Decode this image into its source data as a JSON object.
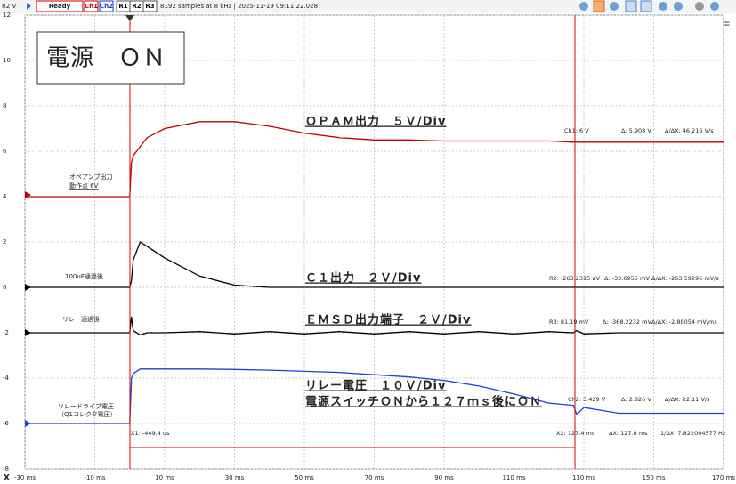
{
  "toolbar": {
    "axis_unit": "R2 V",
    "status": "Ready",
    "channels": [
      "Ch1",
      "Ch2",
      "R1",
      "R2",
      "R3"
    ],
    "info": "8192 samples at 8 kHz | 2025-11-19 09:11:22.028",
    "corner": "X"
  },
  "chart_data": {
    "type": "line",
    "x": [
      -30,
      0,
      0.5,
      1,
      3,
      5,
      10,
      20,
      30,
      40,
      50,
      60,
      70,
      80,
      90,
      100,
      110,
      120,
      127,
      128,
      130,
      140,
      150,
      160,
      170
    ],
    "series": [
      {
        "name": "Ch1",
        "color": "#c00000",
        "values": [
          4,
          4,
          5.5,
          5.8,
          6.2,
          6.6,
          7.0,
          7.3,
          7.3,
          7.1,
          6.8,
          6.6,
          6.5,
          6.5,
          6.45,
          6.45,
          6.45,
          6.45,
          6.4,
          6.4,
          6.4,
          6.4,
          6.4,
          6.4,
          6.4
        ]
      },
      {
        "name": "R2",
        "color": "#000000",
        "values": [
          0,
          0,
          0.3,
          1.2,
          2.0,
          1.8,
          1.3,
          0.5,
          0.1,
          0,
          0,
          0,
          0,
          0,
          0,
          0,
          0,
          0,
          0,
          0,
          0,
          0,
          0,
          0,
          0
        ]
      },
      {
        "name": "R3",
        "color": "#000000",
        "values": [
          -2,
          -2,
          -1.3,
          -1.9,
          -2.1,
          -2.0,
          -2.0,
          -1.95,
          -2.05,
          -1.95,
          -2.05,
          -1.95,
          -2.05,
          -1.95,
          -2.05,
          -1.95,
          -2.05,
          -1.95,
          -2.0,
          -1.9,
          -2.05,
          -2.0,
          -2.0,
          -2.0,
          -2.0
        ]
      },
      {
        "name": "Ch2",
        "color": "#1f3fd8",
        "values": [
          -6,
          -6,
          -4,
          -3.8,
          -3.6,
          -3.6,
          -3.6,
          -3.6,
          -3.62,
          -3.65,
          -3.7,
          -3.75,
          -3.85,
          -3.95,
          -4.1,
          -4.35,
          -4.7,
          -5.1,
          -5.2,
          -5.6,
          -5.3,
          -5.55,
          -5.55,
          -5.55,
          -5.55
        ]
      }
    ],
    "xlim": [
      -30,
      170
    ],
    "ylim": [
      -8,
      12
    ],
    "xticks": [
      {
        "value": -30,
        "label": "-30 ms"
      },
      {
        "value": -10,
        "label": "-10 ms"
      },
      {
        "value": 10,
        "label": "10 ms"
      },
      {
        "value": 30,
        "label": "30 ms"
      },
      {
        "value": 50,
        "label": "50 ms"
      },
      {
        "value": 70,
        "label": "70 ms"
      },
      {
        "value": 90,
        "label": "90 ms"
      },
      {
        "value": 110,
        "label": "110 ms"
      },
      {
        "value": 130,
        "label": "130 ms"
      },
      {
        "value": 150,
        "label": "150 ms"
      },
      {
        "value": 170,
        "label": "170 ms"
      }
    ],
    "yticks": [
      -8,
      -6,
      -4,
      -2,
      0,
      2,
      4,
      6,
      8,
      10,
      12
    ],
    "grid": true,
    "annotations": [
      "電源　ＯＮ",
      "ＯＰＡＭ出力　５Ｖ/Div",
      "Ｃ１出力　２Ｖ/Div",
      "ＥＭＳＤ出力端子　２Ｖ/Div",
      "リレー電圧　１０Ｖ/Div",
      "電源スイッチＯＮから１２７ｍｓ後にＯＮ",
      "オペアンプ出力",
      "動作点 6V",
      "100uF通過後",
      "リレー通過後",
      "リレードライブ電圧",
      "（Q1コレクタ電圧）"
    ],
    "readouts": [
      "Ch1: 6 V",
      "Δ: 5.908 V",
      "Δ/ΔX: 46.216 V/s",
      "R2: -263.2315 uV",
      "Δ: -33.6955 mV",
      "Δ/ΔX: -263.59296 mV/s",
      "R3: 81.19 mV",
      "Δ: -368.2232 mV",
      "Δ/ΔX: -2.88054 mV/ms",
      "Ch2: 3.429 V",
      "Δ: 2.826 V",
      "Δ/ΔX: 22.11 V/s",
      "X1: -449.4 us",
      "X2: 127.4 ms",
      "ΔX: 127.8 ms",
      "1/ΔX: 7.822004577 Hz"
    ]
  }
}
